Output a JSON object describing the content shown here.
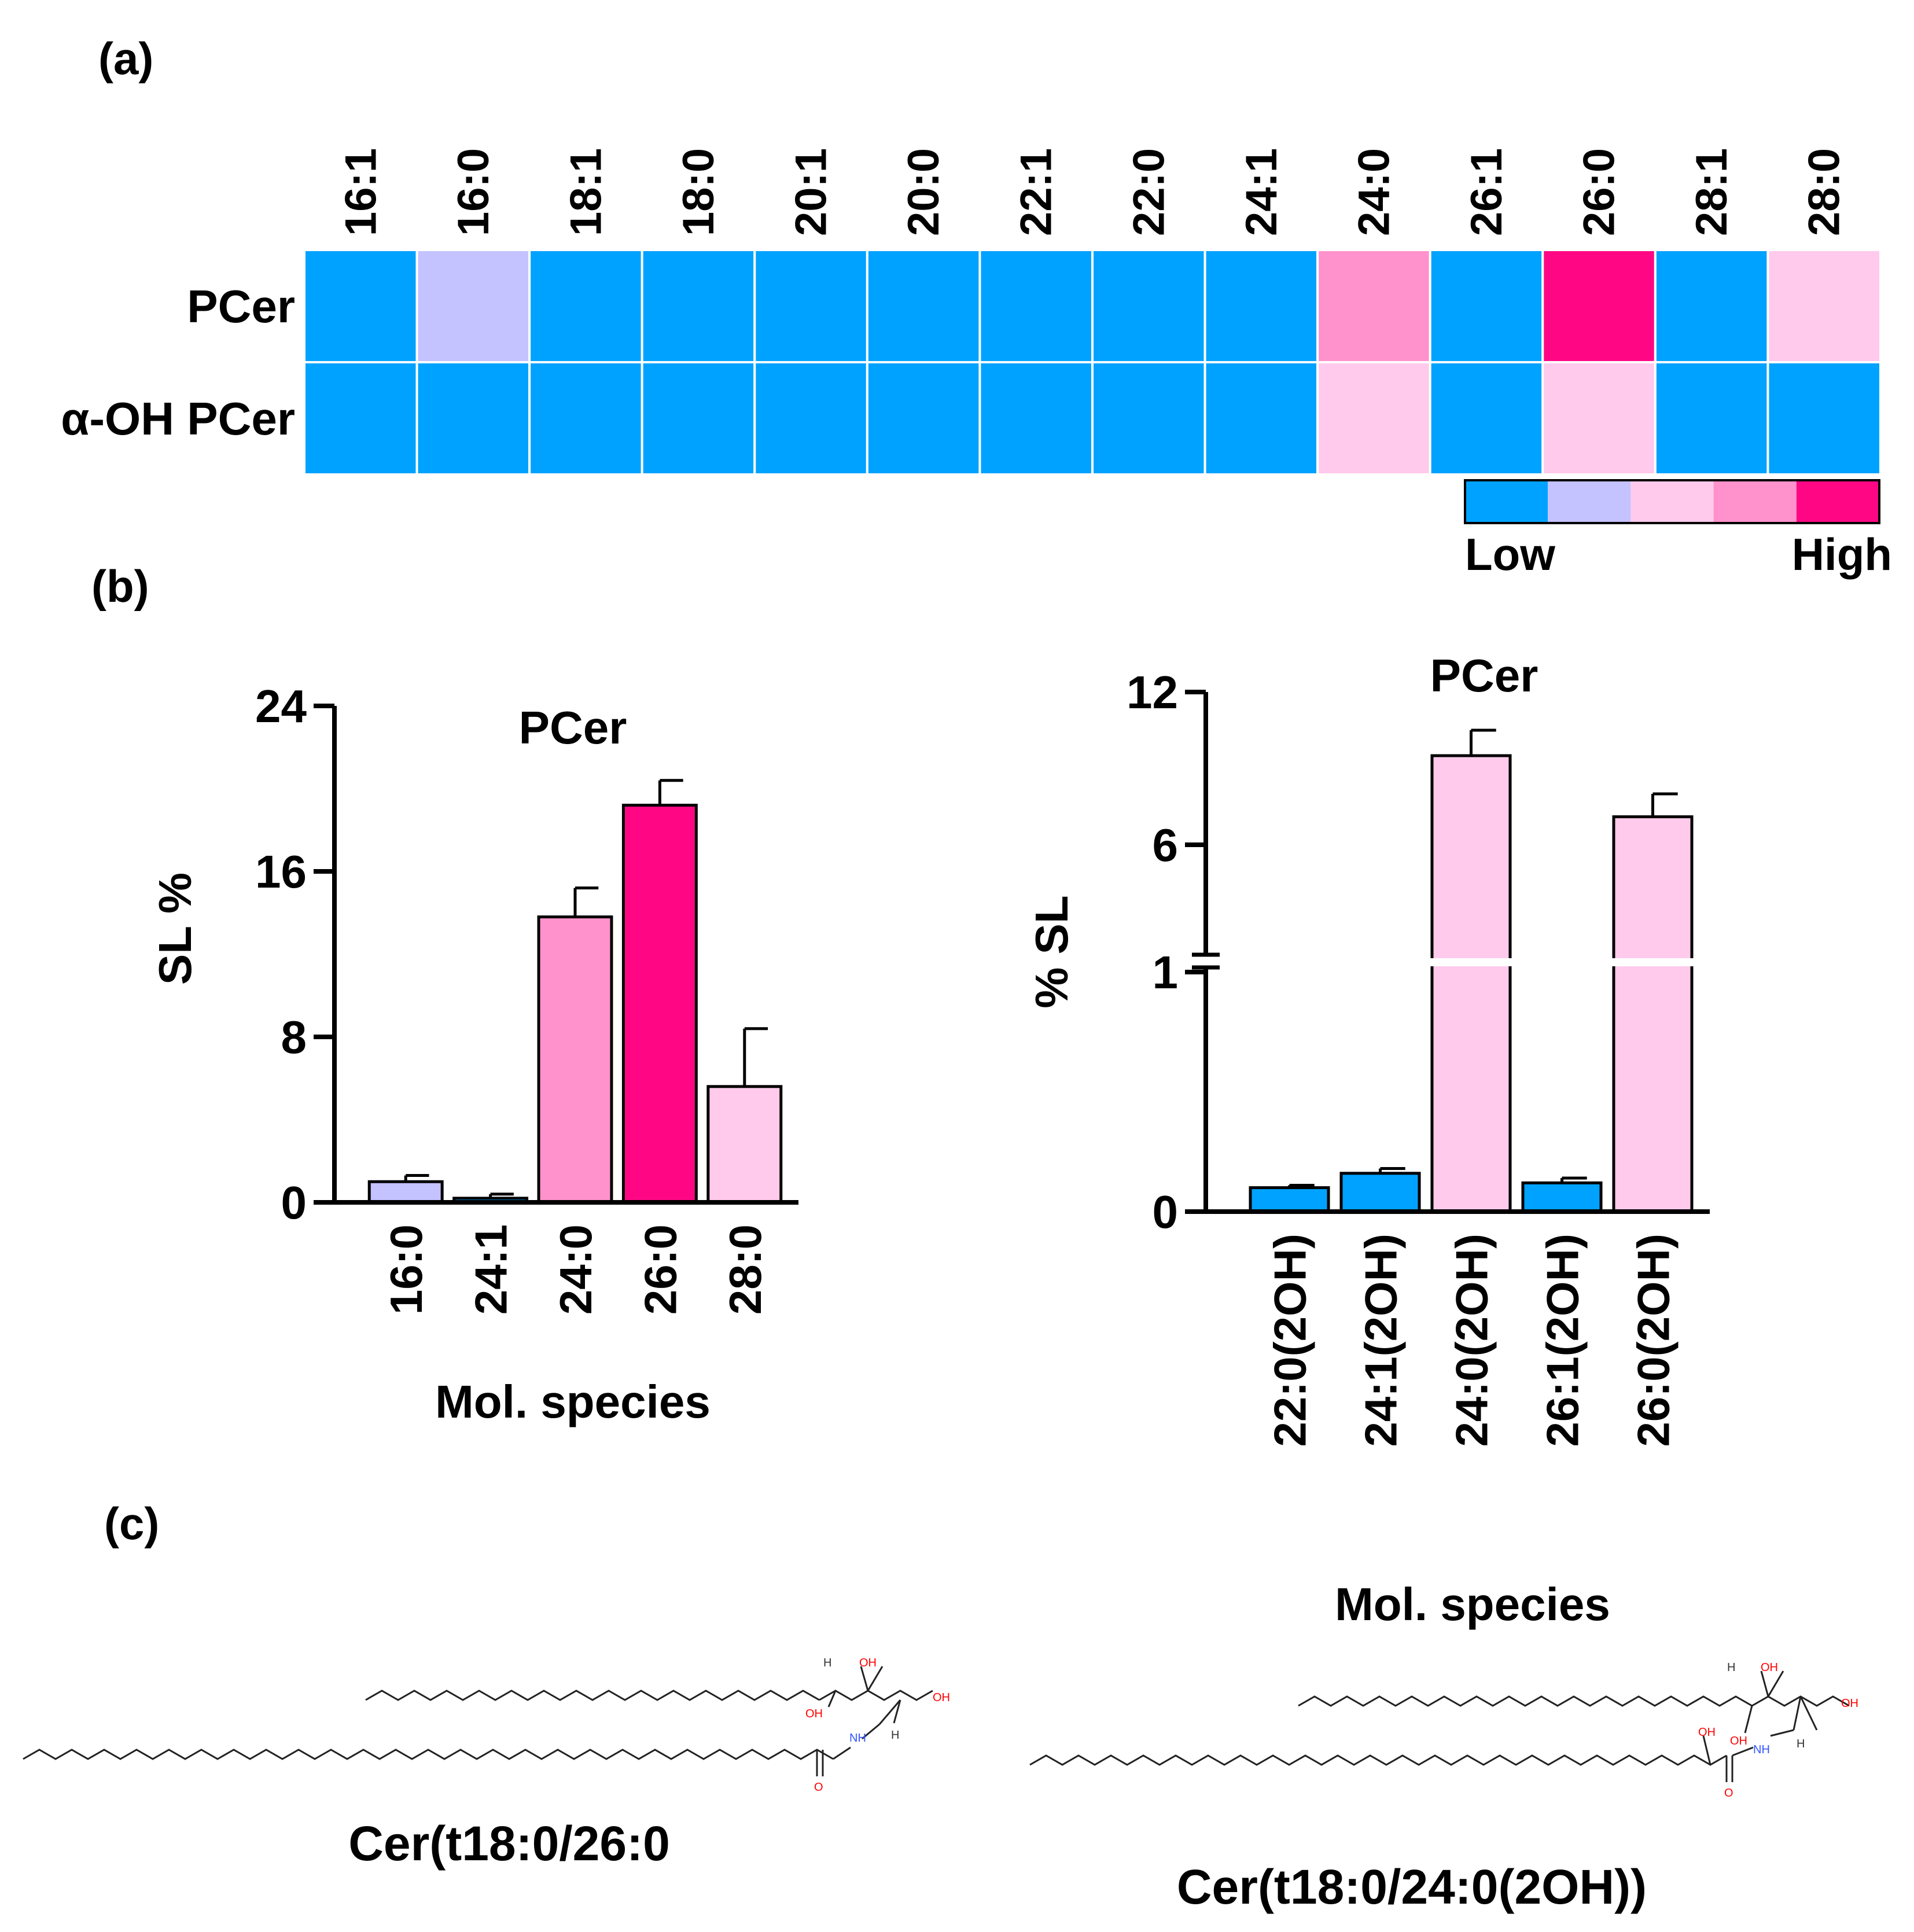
{
  "panels": {
    "a": "(a)",
    "b": "(b)",
    "c": "(c)"
  },
  "colors": {
    "level1": "#00a2ff",
    "level2": "#c4c2ff",
    "level3": "#ffcaec",
    "level4": "#ff92cc",
    "level5": "#ff0784",
    "outline": "#000000"
  },
  "chart_data": [
    {
      "type": "heatmap",
      "title": "",
      "columns": [
        "16:1",
        "16:0",
        "18:1",
        "18:0",
        "20:1",
        "20:0",
        "22:1",
        "22:0",
        "24:1",
        "24:0",
        "26:1",
        "26:0",
        "28:1",
        "28:0"
      ],
      "rows": [
        "PCer",
        "α-OH PCer"
      ],
      "levels": [
        [
          1,
          2,
          1,
          1,
          1,
          1,
          1,
          1,
          1,
          4,
          1,
          5,
          1,
          3
        ],
        [
          1,
          1,
          1,
          1,
          1,
          1,
          1,
          1,
          1,
          3,
          1,
          3,
          1,
          1
        ]
      ],
      "scale": {
        "low": "Low",
        "high": "High",
        "steps": 5
      }
    },
    {
      "type": "bar",
      "title": "PCer",
      "ylabel": "SL %",
      "xlabel": "Mol. species",
      "categories": [
        "16:0",
        "24:1",
        "24:0",
        "26:0",
        "28:0"
      ],
      "values": [
        1.0,
        0.2,
        13.8,
        19.2,
        5.6
      ],
      "errors": [
        0.3,
        0.2,
        1.4,
        1.2,
        2.8
      ],
      "bar_levels": [
        2,
        1,
        4,
        5,
        3
      ],
      "ylim": [
        0,
        24
      ],
      "yticks": [
        "0",
        "8",
        "16",
        "24"
      ]
    },
    {
      "type": "bar",
      "title": "PCer",
      "ylabel": "% SL",
      "xlabel": "Mol. species",
      "categories": [
        "22:0(2OH)",
        "24:1(2OH)",
        "24:0(2OH)",
        "26:1(2OH)",
        "26:0(2OH)"
      ],
      "values": [
        0.1,
        0.16,
        9.5,
        0.12,
        7.1
      ],
      "errors": [
        0.01,
        0.02,
        1.0,
        0.02,
        0.9
      ],
      "bar_levels": [
        1,
        1,
        3,
        1,
        3
      ],
      "ylim": [
        0,
        12
      ],
      "axis_break": 1,
      "yticks": [
        "0",
        "1",
        "6",
        "12"
      ]
    }
  ],
  "structures": {
    "left": {
      "name": "Cer(t18:0/26:0",
      "atoms": {
        "oh": "OH",
        "h": "H",
        "nh": "NH",
        "o": "O"
      }
    },
    "right": {
      "name": "Cer(t18:0/24:0(2OH))",
      "atoms": {
        "oh": "OH",
        "h": "H",
        "nh": "NH",
        "o": "O"
      }
    }
  }
}
